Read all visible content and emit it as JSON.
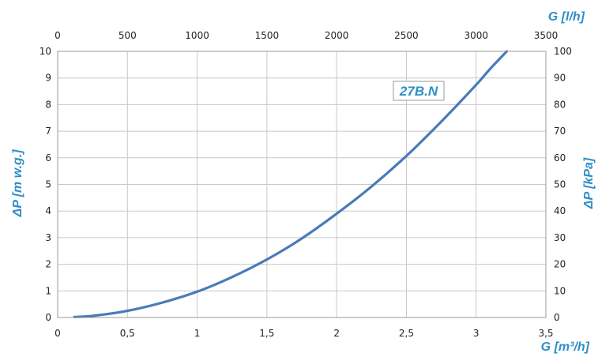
{
  "chart_data": {
    "type": "line",
    "title": "",
    "grid": true,
    "colors": {
      "line": "#4a7ab8",
      "title": "#2e8ec8",
      "grid": "#c8c8c8",
      "frame": "#9a9a9a"
    },
    "x_bottom": {
      "label": "G [m³/h]",
      "range": [
        0,
        3.5
      ],
      "ticks": [
        "0",
        "0,5",
        "1",
        "1,5",
        "2",
        "2,5",
        "3",
        "3,5"
      ]
    },
    "x_top": {
      "label": "G [l/h]",
      "range": [
        0,
        3500
      ],
      "ticks": [
        "0",
        "500",
        "1000",
        "1500",
        "2000",
        "2500",
        "3000",
        "3500"
      ]
    },
    "y_left": {
      "label": "ΔP [m w.g.]",
      "range": [
        0,
        10
      ],
      "ticks": [
        "0",
        "1",
        "2",
        "3",
        "4",
        "5",
        "6",
        "7",
        "8",
        "9",
        "10"
      ]
    },
    "y_right": {
      "label": "ΔP [kPa]",
      "range": [
        0,
        100
      ],
      "ticks": [
        "0",
        "10",
        "20",
        "30",
        "40",
        "50",
        "60",
        "70",
        "80",
        "90",
        "100"
      ]
    },
    "series": [
      {
        "name": "27B.N",
        "x": [
          0.12,
          0.25,
          0.5,
          0.75,
          1.0,
          1.25,
          1.5,
          1.75,
          2.0,
          2.25,
          2.5,
          2.75,
          3.0,
          3.1,
          3.22
        ],
        "y": [
          0.02,
          0.06,
          0.25,
          0.56,
          0.97,
          1.52,
          2.18,
          2.97,
          3.9,
          4.92,
          6.07,
          7.36,
          8.74,
          9.34,
          10.0
        ]
      }
    ]
  }
}
